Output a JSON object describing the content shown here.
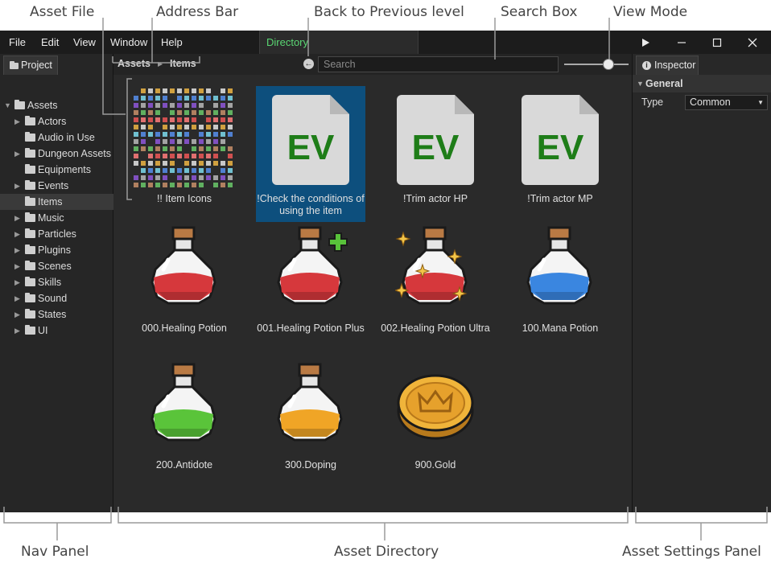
{
  "annotations": {
    "asset_file": "Asset File",
    "address_bar": "Address Bar",
    "back_level": "Back to Previous level",
    "search_box": "Search Box",
    "view_mode": "View Mode",
    "nav_panel": "Nav Panel",
    "asset_directory": "Asset Directory",
    "asset_settings_panel": "Asset Settings Panel"
  },
  "menubar": {
    "items": [
      "File",
      "Edit",
      "View",
      "Window",
      "Help"
    ],
    "active_tab": "Directory",
    "active_tab_color": "#5ad673",
    "window_controls": [
      "play-icon",
      "minimize-icon",
      "maximize-icon",
      "close-icon"
    ]
  },
  "nav": {
    "tab_label": "Project",
    "root": "Assets",
    "items": [
      {
        "label": "Actors",
        "expandable": true
      },
      {
        "label": "Audio in Use",
        "expandable": false
      },
      {
        "label": "Dungeon Assets",
        "expandable": true
      },
      {
        "label": "Equipments",
        "expandable": false
      },
      {
        "label": "Events",
        "expandable": true
      },
      {
        "label": "Items",
        "expandable": false,
        "selected": true
      },
      {
        "label": "Music",
        "expandable": true
      },
      {
        "label": "Particles",
        "expandable": true
      },
      {
        "label": "Plugins",
        "expandable": true
      },
      {
        "label": "Scenes",
        "expandable": true
      },
      {
        "label": "Skills",
        "expandable": true
      },
      {
        "label": "Sound",
        "expandable": true
      },
      {
        "label": "States",
        "expandable": true
      },
      {
        "label": "UI",
        "expandable": true
      }
    ]
  },
  "address_bar": {
    "crumbs": [
      "Assets",
      "Items"
    ],
    "separator": "▶"
  },
  "search": {
    "placeholder": "Search",
    "value": ""
  },
  "view_mode": {
    "zoom_fraction": 0.68
  },
  "assets": {
    "row1": [
      {
        "label": "!! Item Icons",
        "kind": "sprite-sheet"
      },
      {
        "label": "!Check the conditions of using the item",
        "kind": "event",
        "ev_text": "EV",
        "selected": true
      },
      {
        "label": "!Trim actor HP",
        "kind": "event",
        "ev_text": "EV"
      },
      {
        "label": "!Trim actor MP",
        "kind": "event",
        "ev_text": "EV"
      }
    ],
    "row2": [
      {
        "label": "000.Healing Potion",
        "kind": "potion",
        "liquid": "#d6383c"
      },
      {
        "label": "001.Healing Potion Plus",
        "kind": "potion",
        "liquid": "#d6383c",
        "badge": "plus"
      },
      {
        "label": "002.Healing Potion Ultra",
        "kind": "potion",
        "liquid": "#d6383c",
        "badge": "sparkle"
      },
      {
        "label": "100.Mana Potion",
        "kind": "potion",
        "liquid": "#3a86e0"
      }
    ],
    "row3": [
      {
        "label": "200.Antidote",
        "kind": "potion",
        "liquid": "#5ac43a"
      },
      {
        "label": "300.Doping",
        "kind": "potion",
        "liquid": "#f0a526"
      },
      {
        "label": "900.Gold",
        "kind": "coin"
      }
    ]
  },
  "inspector": {
    "tab_label": "Inspector",
    "section": "General",
    "type_label": "Type",
    "type_value": "Common"
  },
  "colors": {
    "ev_green": "#1e7d18",
    "selection_blue": "#0d4f7d"
  }
}
